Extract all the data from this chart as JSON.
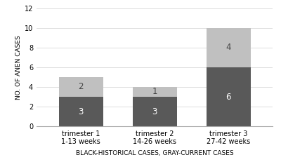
{
  "categories": [
    "trimester 1\n1-13 weeks",
    "trimester 2\n14-26 weeks",
    "trimester 3\n27-42 weeks"
  ],
  "historical_values": [
    3,
    3,
    6
  ],
  "current_values": [
    2,
    1,
    4
  ],
  "historical_color": "#595959",
  "current_color": "#c0c0c0",
  "ylabel": "NO. OF ANEN CASES",
  "xlabel": "BLACK-HISTORICAL CASES, GRAY-CURRENT CASES",
  "ylim": [
    0,
    12
  ],
  "yticks": [
    0,
    2,
    4,
    6,
    8,
    10,
    12
  ],
  "bar_width": 0.6,
  "axis_label_fontsize": 6.5,
  "tick_fontsize": 7,
  "bar_label_fontsize": 8.5,
  "xlabel_fontsize": 6.5
}
